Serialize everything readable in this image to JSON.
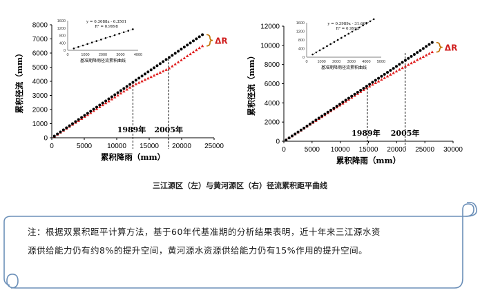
{
  "colors": {
    "black_series": "#000000",
    "red_series": "#e02020",
    "scroll_border": "#6b8fb8",
    "scroll_fill": "#ffffff"
  },
  "caption": "三江源区（左）与黄河源区（右）径流累积距平曲线",
  "note": {
    "line1": "注：根据双累积距平计算方法，基于60年代基准期的分析结果表明，近十年来三江源水资",
    "line2": "源供给能力仍有约8%的提升空间，黄河源水资源供给能力仍有15%作用的提升空间。"
  },
  "chart_data": [
    {
      "type": "scatter",
      "title": "",
      "xlabel": "累积降雨（mm）",
      "ylabel": "累积径流（mm）",
      "xlim": [
        0,
        25000
      ],
      "ylim": [
        0,
        8000
      ],
      "xticks": [
        "0",
        "5000",
        "10000",
        "15000",
        "20000",
        "25000"
      ],
      "yticks": [
        "0",
        "1000",
        "2000",
        "3000",
        "4000",
        "5000",
        "6000",
        "7000",
        "8000"
      ],
      "grid": false,
      "series": [
        {
          "color": "#000000",
          "marker": "circle",
          "x_start": 400,
          "x_end": 23200,
          "y_start": 120,
          "y_end": 7300,
          "n": 50
        },
        {
          "color": "#e02020",
          "marker": "triangle",
          "x_start": 400,
          "x_end": 23200,
          "y_points": [
            [
              400,
              100
            ],
            [
              12500,
              3700
            ],
            [
              18000,
              4900
            ],
            [
              23200,
              6500
            ]
          ],
          "n": 50
        }
      ],
      "annotations": [
        {
          "text": "1989年",
          "x": 12500
        },
        {
          "text": "2005年",
          "x": 18000
        },
        {
          "text": "ΔR"
        }
      ],
      "inset": {
        "xlabel": "基准期降雨径流累积曲线",
        "xlim": [
          0,
          4000
        ],
        "ylim": [
          0,
          1600
        ],
        "xticks": [
          "0",
          "1000",
          "2000",
          "3000",
          "4000"
        ],
        "yticks": [
          "0",
          "400",
          "800",
          "1200",
          "1600"
        ],
        "equation": "y = 0.3088x - 6.3501",
        "r2": "R² = 0.9998",
        "x_start": 350,
        "x_end": 3700,
        "n": 14
      }
    },
    {
      "type": "scatter",
      "title": "",
      "xlabel": "累积降雨（mm）",
      "ylabel": "累积径流（mm）",
      "xlim": [
        0,
        30000
      ],
      "ylim": [
        0,
        12000
      ],
      "xticks": [
        "0",
        "5000",
        "10000",
        "15000",
        "20000",
        "25000",
        "30000"
      ],
      "yticks": [
        "0",
        "2000",
        "4000",
        "6000",
        "8000",
        "10000",
        "12000"
      ],
      "grid": false,
      "series": [
        {
          "color": "#000000",
          "marker": "circle",
          "x_start": 400,
          "x_end": 26300,
          "y_start": 130,
          "y_end": 10300,
          "n": 50
        },
        {
          "color": "#e02020",
          "marker": "triangle",
          "x_start": 400,
          "x_end": 26300,
          "y_points": [
            [
              400,
              130
            ],
            [
              14800,
              5600
            ],
            [
              21500,
              7800
            ],
            [
              26300,
              9300
            ]
          ],
          "n": 50
        }
      ],
      "annotations": [
        {
          "text": "1989年",
          "x": 14800
        },
        {
          "text": "2005年",
          "x": 21500
        },
        {
          "text": "ΔR"
        }
      ],
      "inset": {
        "xlabel": "基准期降雨径流累积曲线",
        "xlim": [
          0,
          5000
        ],
        "ylim": [
          0,
          1600
        ],
        "xticks": [
          "0",
          "1000",
          "2000",
          "3000",
          "4000",
          "5000"
        ],
        "yticks": [
          "0",
          "400",
          "800",
          "1200",
          "1600"
        ],
        "equation": "y = 0.3989x - 31.667",
        "r2": "R² = 0.9992",
        "x_start": 400,
        "x_end": 4500,
        "n": 18
      }
    }
  ]
}
